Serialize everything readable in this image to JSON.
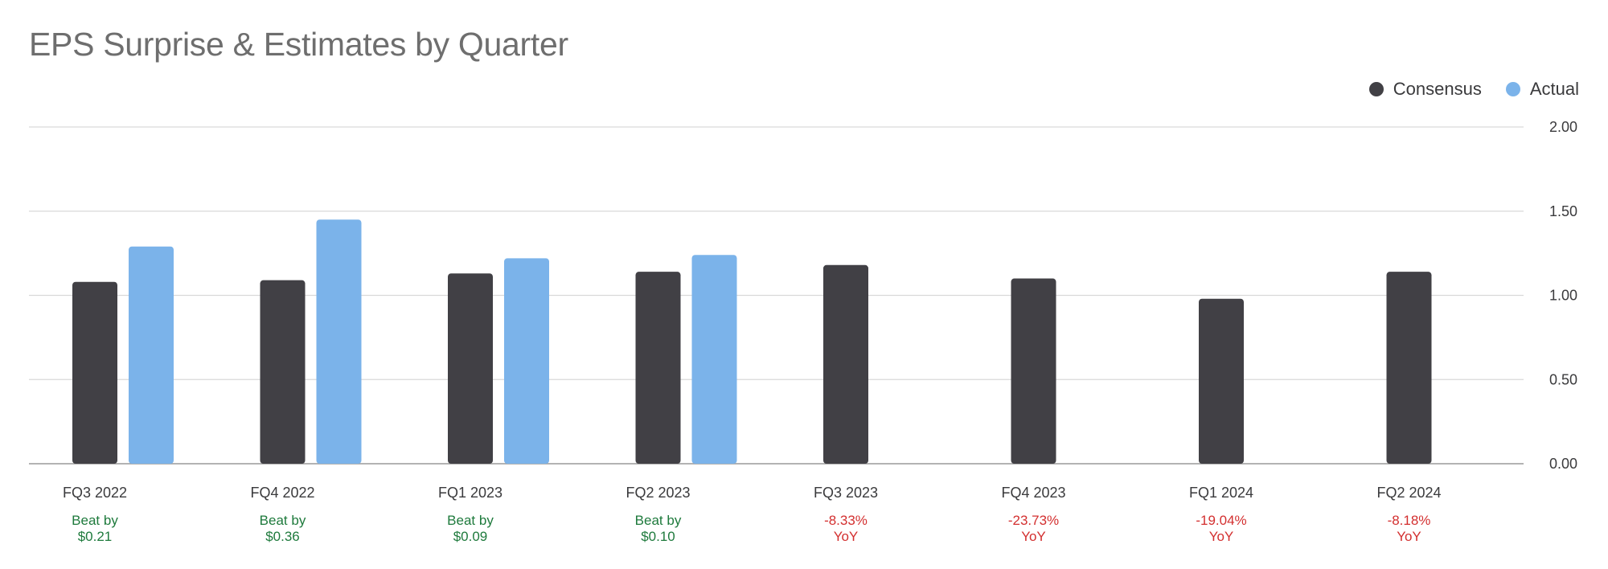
{
  "title": "EPS Surprise & Estimates by Quarter",
  "legend": [
    {
      "label": "Consensus",
      "color": "#414045"
    },
    {
      "label": "Actual",
      "color": "#7bb3ea"
    }
  ],
  "colors": {
    "positive": "#1e7a3c",
    "negative": "#d32f2f",
    "grid": "#d9d9d9",
    "axis": "#9a9a9a"
  },
  "chart_data": {
    "type": "bar",
    "title": "EPS Surprise & Estimates by Quarter",
    "categories": [
      "FQ3 2022",
      "FQ4 2022",
      "FQ1 2023",
      "FQ2 2023",
      "FQ3 2023",
      "FQ4 2023",
      "FQ1 2024",
      "FQ2 2024"
    ],
    "series": [
      {
        "name": "Consensus",
        "color": "#414045",
        "values": [
          1.08,
          1.09,
          1.13,
          1.14,
          1.18,
          1.1,
          0.98,
          1.14
        ]
      },
      {
        "name": "Actual",
        "color": "#7bb3ea",
        "values": [
          1.29,
          1.45,
          1.22,
          1.24,
          null,
          null,
          null,
          null
        ]
      }
    ],
    "annotations": [
      {
        "line1": "Beat by",
        "line2": "$0.21",
        "sentiment": "positive"
      },
      {
        "line1": "Beat by",
        "line2": "$0.36",
        "sentiment": "positive"
      },
      {
        "line1": "Beat by",
        "line2": "$0.09",
        "sentiment": "positive"
      },
      {
        "line1": "Beat by",
        "line2": "$0.10",
        "sentiment": "positive"
      },
      {
        "line1": "-8.33%",
        "line2": "YoY",
        "sentiment": "negative"
      },
      {
        "line1": "-23.73%",
        "line2": "YoY",
        "sentiment": "negative"
      },
      {
        "line1": "-19.04%",
        "line2": "YoY",
        "sentiment": "negative"
      },
      {
        "line1": "-8.18%",
        "line2": "YoY",
        "sentiment": "negative"
      }
    ],
    "y_ticks": [
      "0.00",
      "0.50",
      "1.00",
      "1.50",
      "2.00"
    ],
    "ylim": [
      0,
      2
    ],
    "y_axis_position": "right",
    "grid": true,
    "legend_position": "top-right"
  }
}
